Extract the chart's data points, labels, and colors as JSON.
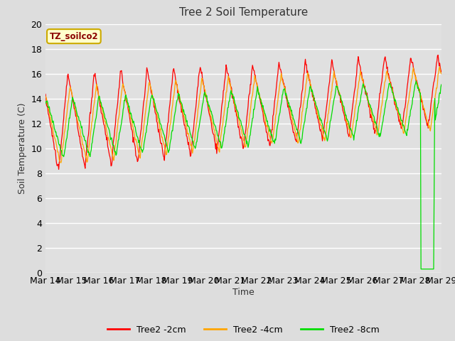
{
  "title": "Tree 2 Soil Temperature",
  "ylabel": "Soil Temperature (C)",
  "xlabel": "Time",
  "watermark": "TZ_soilco2",
  "ylim": [
    0,
    20
  ],
  "background_color": "#e0e0e0",
  "line_colors": {
    "2cm": "#ff0000",
    "4cm": "#ffa500",
    "8cm": "#00dd00"
  },
  "legend_labels": [
    "Tree2 -2cm",
    "Tree2 -4cm",
    "Tree2 -8cm"
  ],
  "x_tick_labels": [
    "Mar 14",
    "Mar 15",
    "Mar 16",
    "Mar 17",
    "Mar 18",
    "Mar 19",
    "Mar 20",
    "Mar 21",
    "Mar 22",
    "Mar 23",
    "Mar 24",
    "Mar 25",
    "Mar 26",
    "Mar 27",
    "Mar 28",
    "Mar 29"
  ],
  "num_days": 15,
  "points_per_day": 48
}
